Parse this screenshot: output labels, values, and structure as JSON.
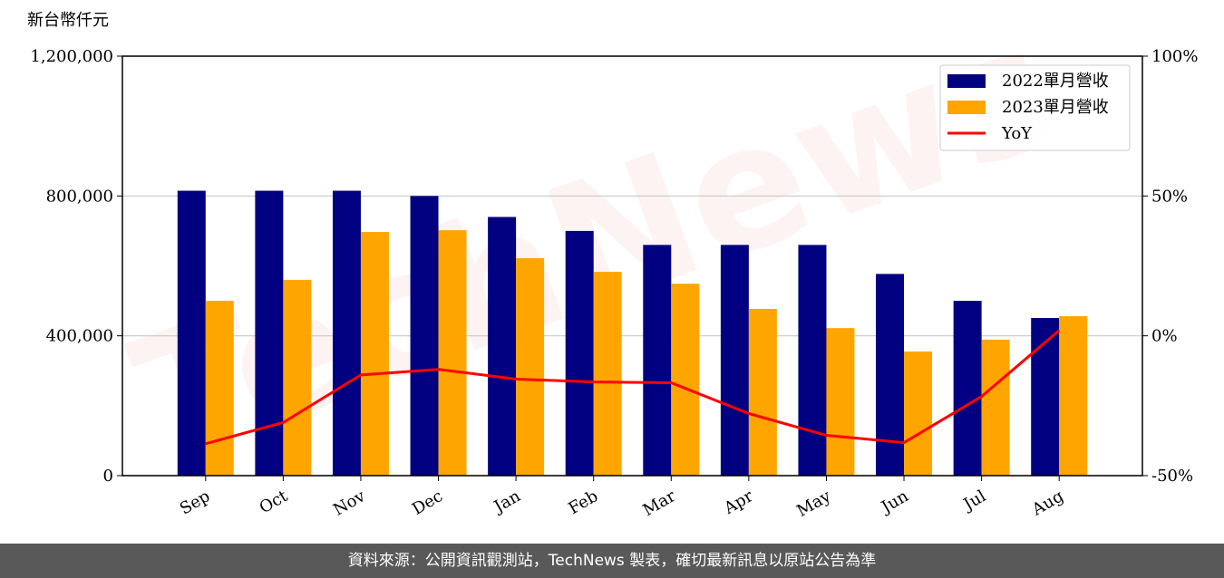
{
  "chart_data": {
    "type": "bar",
    "ylabel": "新台幣仟元",
    "watermark": "TechNews",
    "categories": [
      "Sep",
      "Oct",
      "Nov",
      "Dec",
      "Jan",
      "Feb",
      "Mar",
      "Apr",
      "May",
      "Jun",
      "Jul",
      "Aug"
    ],
    "series": [
      {
        "name": "2022單月營收",
        "color": "#000080",
        "values": [
          815000,
          815000,
          815000,
          800000,
          740000,
          700000,
          660000,
          660000,
          660000,
          577000,
          500000,
          451000
        ]
      },
      {
        "name": "2023單月營收",
        "color": "#ffa500",
        "values": [
          500000,
          560000,
          697000,
          702000,
          622000,
          583000,
          549000,
          477000,
          422000,
          355000,
          389000,
          456000
        ]
      },
      {
        "name": "YoY",
        "color": "#ff0000",
        "axis": "y2",
        "values": [
          -38.6,
          -31,
          -14,
          -12,
          -15.5,
          -16.5,
          -16.8,
          -27.8,
          -35.6,
          -38.2,
          -21.7,
          1.9
        ]
      }
    ],
    "ylim": [
      0,
      1200000
    ],
    "yticks": [
      0,
      {
        "value": 400000,
        "label": "400,000"
      },
      {
        "value": 800000,
        "label": "800,000"
      },
      {
        "value": 1200000,
        "label": "1,200,000"
      }
    ],
    "y2lim": [
      -50,
      100
    ],
    "y2ticks": [
      {
        "value": -50,
        "label": "-50%"
      },
      {
        "value": 0,
        "label": "0%"
      },
      {
        "value": 50,
        "label": "50%"
      },
      {
        "value": 100,
        "label": "100%"
      }
    ],
    "grid": true,
    "legend": "upper right"
  },
  "footer": "資料來源：公開資訊觀測站，TechNews 製表，確切最新訊息以原站公告為準"
}
